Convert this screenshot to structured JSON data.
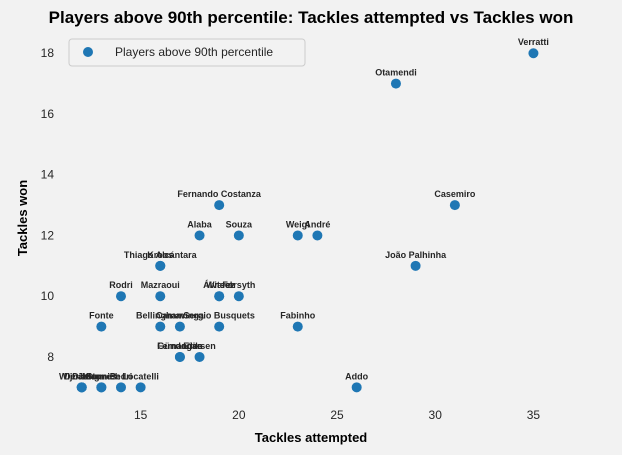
{
  "chart_data": {
    "type": "scatter",
    "title": "Players above 90th percentile: Tackles attempted vs Tackles won",
    "xlabel": "Tackles attempted",
    "ylabel": "Tackles won",
    "xlim": [
      11.2,
      36.2
    ],
    "ylim": [
      6.55,
      18.6
    ],
    "xticks": [
      15,
      20,
      25,
      30,
      35
    ],
    "yticks": [
      8,
      10,
      12,
      14,
      16,
      18
    ],
    "grid": false,
    "legend": {
      "position": "top-left",
      "label": "Players above 90th percentile"
    },
    "color": "#1f77b4",
    "background": "#f2f2f2",
    "points": [
      {
        "label": "Verratti",
        "x": 35,
        "y": 18
      },
      {
        "label": "Otamendi",
        "x": 28,
        "y": 17
      },
      {
        "label": "Fernando Costanza",
        "x": 19,
        "y": 13
      },
      {
        "label": "Casemiro",
        "x": 31,
        "y": 13
      },
      {
        "label": "Alaba",
        "x": 18,
        "y": 12
      },
      {
        "label": "Souza",
        "x": 20,
        "y": 12
      },
      {
        "label": "Weigl",
        "x": 23,
        "y": 12
      },
      {
        "label": "André",
        "x": 24,
        "y": 12
      },
      {
        "label": "Thiago Alcántara",
        "x": 16,
        "y": 11
      },
      {
        "label": "Kroos",
        "x": 16,
        "y": 11
      },
      {
        "label": "João Palhinha",
        "x": 29,
        "y": 11
      },
      {
        "label": "Rodri",
        "x": 14,
        "y": 10
      },
      {
        "label": "Mazraoui",
        "x": 16,
        "y": 10
      },
      {
        "label": "Álvarez",
        "x": 19,
        "y": 10
      },
      {
        "label": "Witsel",
        "x": 19,
        "y": 10
      },
      {
        "label": "Forsyth",
        "x": 20,
        "y": 10
      },
      {
        "label": "Fonte",
        "x": 13,
        "y": 9
      },
      {
        "label": "Bellingham",
        "x": 16,
        "y": 9
      },
      {
        "label": "Camavinga",
        "x": 17,
        "y": 9
      },
      {
        "label": "Sergio Busquets",
        "x": 19,
        "y": 9
      },
      {
        "label": "Fabinho",
        "x": 23,
        "y": 9
      },
      {
        "label": "Gündoğan",
        "x": 17,
        "y": 8
      },
      {
        "label": "Fernandes",
        "x": 17,
        "y": 8
      },
      {
        "label": "Eriksen",
        "x": 18,
        "y": 8
      },
      {
        "label": "Addo",
        "x": 26,
        "y": 7
      },
      {
        "label": "Wijnaldum",
        "x": 12,
        "y": 7
      },
      {
        "label": "De Jong",
        "x": 12,
        "y": 7
      },
      {
        "label": "Dias",
        "x": 12,
        "y": 7
      },
      {
        "label": "Stones",
        "x": 13,
        "y": 7
      },
      {
        "label": "Kimmich",
        "x": 13,
        "y": 7
      },
      {
        "label": "Pedri",
        "x": 14,
        "y": 7
      },
      {
        "label": "Locatelli",
        "x": 15,
        "y": 7
      }
    ]
  }
}
